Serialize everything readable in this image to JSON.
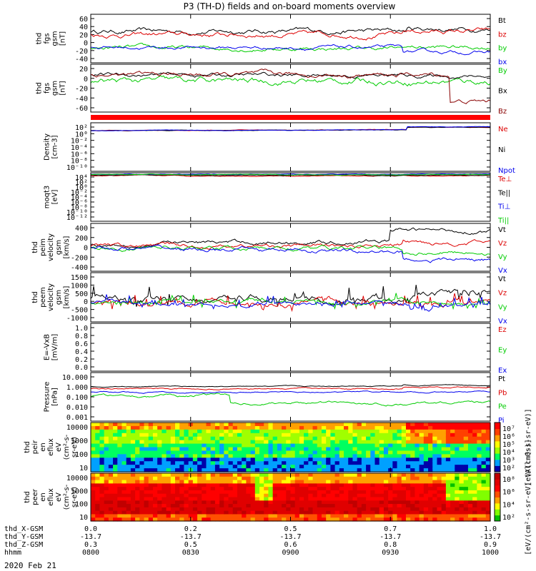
{
  "chart_data": {
    "type": "line",
    "title": "P3 (TH-D) fields and on-board moments overview",
    "date": "2020 Feb 21",
    "x_axis": {
      "time_labels": [
        "0800",
        "0830",
        "0900",
        "0930",
        "1000"
      ],
      "rows": [
        {
          "name": "thd_X-GSM",
          "values": [
            "0.0",
            "0.2",
            "0.5",
            "0.7",
            "1.0"
          ]
        },
        {
          "name": "thd_Y-GSM",
          "values": [
            "-13.7",
            "-13.7",
            "-13.7",
            "-13.7",
            "-13.7"
          ]
        },
        {
          "name": "thd_Z-GSM",
          "values": [
            "0.3",
            "0.5",
            "0.6",
            "0.8",
            "0.9"
          ]
        },
        {
          "name": "hhmm",
          "values": [
            "0800",
            "0830",
            "0900",
            "0930",
            "1000"
          ]
        }
      ]
    },
    "panels": [
      {
        "id": "fgs",
        "ylabel": [
          "thd",
          "fgs",
          "gsm",
          "[nT]"
        ],
        "ylim": [
          -40,
          60
        ],
        "scale": "linear",
        "ticks": [
          "60",
          "40",
          "20",
          "0",
          "-20",
          "-40"
        ],
        "series": [
          {
            "name": "Bt",
            "color": "#000000",
            "level": 25,
            "amp": 7,
            "end": 28,
            "jump": {
              "at": 0.79,
              "to": 30
            }
          },
          {
            "name": "bz",
            "color": "#dd0000",
            "level": 18,
            "amp": 7,
            "end": 20,
            "jump": {
              "at": 0.78,
              "to": 25
            }
          },
          {
            "name": "by",
            "color": "#00cc00",
            "level": -10,
            "amp": 6,
            "end": -12,
            "jump": {
              "at": 0.78,
              "to": -8
            }
          },
          {
            "name": "bx",
            "color": "#0000ee",
            "level": -8,
            "amp": 5,
            "end": -12,
            "jump": {
              "at": 0.78,
              "to": -18
            }
          }
        ]
      },
      {
        "id": "fgs2",
        "ylabel": [
          "thd",
          "fgs",
          "gsm",
          "[nT]"
        ],
        "ylim": [
          -70,
          20
        ],
        "scale": "linear",
        "ticks": [
          "20",
          "0",
          "-20",
          "-40",
          "-60"
        ],
        "series": [
          {
            "name": "By",
            "color": "#00cc00",
            "level": -12,
            "amp": 8,
            "end": -10,
            "jump": {
              "at": 0.8,
              "to": -12
            }
          },
          {
            "name": "Bx",
            "color": "#000000",
            "level": 0,
            "amp": 5,
            "end": -5,
            "jump": {
              "at": 0.8,
              "to": -2
            }
          },
          {
            "name": "Bz",
            "color": "#880000",
            "level": 0,
            "amp": 6,
            "end": 0,
            "jump": {
              "at": 0.9,
              "to": -50
            }
          }
        ]
      },
      {
        "id": "density",
        "ylabel": [
          "Density",
          "[cm-3]"
        ],
        "ylim": [
          -10,
          2
        ],
        "scale": "log",
        "ticks": [
          "10²",
          "10⁰",
          "10⁻²",
          "10⁻⁴",
          "10⁻⁶",
          "10⁻⁸",
          "10⁻¹⁰"
        ],
        "series": [
          {
            "name": "Ne",
            "color": "#dd0000",
            "level": 0.1,
            "amp": 0.1,
            "end": 0.8,
            "jump": {
              "at": 0.79,
              "to": 0.9
            }
          },
          {
            "name": "Ni",
            "color": "#000000",
            "level": 0.05,
            "amp": 0.1,
            "end": 0.8,
            "jump": {
              "at": 0.79,
              "to": 0.9
            }
          },
          {
            "name": "Npot",
            "color": "#0000ee",
            "level": 0.05,
            "amp": 0.1,
            "end": 0.9,
            "jump": {
              "at": 0.79,
              "to": 1.0
            }
          }
        ]
      },
      {
        "id": "temp",
        "ylabel": [
          "moqt3",
          "[eV]"
        ],
        "ylim": [
          -12,
          4
        ],
        "scale": "log",
        "ticks": [
          "10⁴",
          "10²",
          "10⁰",
          "10⁻²",
          "10⁻⁴",
          "10⁻⁶",
          "10⁻⁸",
          "10⁻¹⁰",
          "10⁻¹²"
        ],
        "series": [
          {
            "name": "Te⊥",
            "color": "#dd0000",
            "level": 3.0,
            "amp": 0.2,
            "end": 2.8,
            "jump": {
              "at": 0.8,
              "to": 2.9
            }
          },
          {
            "name": "Te||",
            "color": "#000000",
            "level": 3.2,
            "amp": 0.15,
            "end": 3.0,
            "jump": {
              "at": 0.8,
              "to": 3.1
            }
          },
          {
            "name": "Ti⊥",
            "color": "#0000ee",
            "level": 3.5,
            "amp": 0.15,
            "end": 3.3,
            "jump": {
              "at": 0.8,
              "to": 3.5
            }
          },
          {
            "name": "Ti||",
            "color": "#00cc00",
            "level": 3.4,
            "amp": 0.15,
            "end": 3.2,
            "jump": {
              "at": 0.8,
              "to": 3.4
            }
          }
        ]
      },
      {
        "id": "peim",
        "ylabel": [
          "thd",
          "peim",
          "velocity",
          "gsm",
          "[km/s]"
        ],
        "ylim": [
          -400,
          400
        ],
        "scale": "linear",
        "ticks": [
          "400",
          "200",
          "0",
          "-200",
          "-400"
        ],
        "series": [
          {
            "name": "Vt",
            "color": "#000000",
            "level": 50,
            "amp": 50,
            "end": 300,
            "jump": {
              "at": 0.75,
              "to": 280
            }
          },
          {
            "name": "Vz",
            "color": "#dd0000",
            "level": 20,
            "amp": 50,
            "end": 50,
            "jump": {
              "at": 0.78,
              "to": 80
            }
          },
          {
            "name": "Vy",
            "color": "#00cc00",
            "level": 0,
            "amp": 50,
            "end": -100,
            "jump": {
              "at": 0.78,
              "to": -80
            }
          },
          {
            "name": "Vx",
            "color": "#0000ee",
            "level": -20,
            "amp": 50,
            "end": -250,
            "jump": {
              "at": 0.78,
              "to": -200
            }
          }
        ]
      },
      {
        "id": "peem",
        "ylabel": [
          "thd",
          "peem",
          "velocity",
          "gsm",
          "[km/s]"
        ],
        "ylim": [
          -1000,
          1500
        ],
        "scale": "linear",
        "ticks": [
          "1500",
          "1000",
          "500",
          "0",
          "-500",
          "-1000"
        ],
        "series": [
          {
            "name": "Vt",
            "color": "#000000",
            "level": 150,
            "amp": 250,
            "end": 400,
            "jump": {
              "at": 0.8,
              "to": 400
            }
          },
          {
            "name": "Vz",
            "color": "#dd0000",
            "level": 0,
            "amp": 200,
            "end": 0,
            "jump": {
              "at": 0.8,
              "to": 0
            }
          },
          {
            "name": "Vy",
            "color": "#00cc00",
            "level": 0,
            "amp": 150,
            "end": -50,
            "jump": {
              "at": 0.8,
              "to": -50
            }
          },
          {
            "name": "Vx",
            "color": "#0000ee",
            "level": 0,
            "amp": 150,
            "end": -300,
            "jump": {
              "at": 0.8,
              "to": -250
            }
          }
        ]
      },
      {
        "id": "efield",
        "ylabel": [
          "E=-VxB",
          "[mV/m]"
        ],
        "ylim": [
          0,
          1
        ],
        "scale": "linear",
        "ticks": [
          "1.0",
          "0.8",
          "0.6",
          "0.4",
          "0.2",
          "0.0"
        ],
        "series": [
          {
            "name": "Ez",
            "color": "#dd0000",
            "empty": true
          },
          {
            "name": "Ey",
            "color": "#00cc00",
            "empty": true
          },
          {
            "name": "Ex",
            "color": "#0000ee",
            "empty": true
          }
        ]
      },
      {
        "id": "pressure",
        "ylabel": [
          "Pressure",
          "[nPa]"
        ],
        "ylim": [
          -3,
          1
        ],
        "scale": "log",
        "ticks": [
          "10.000",
          "1.000",
          "0.100",
          "0.010",
          "0.001"
        ],
        "series": [
          {
            "name": "Pt",
            "color": "#000000",
            "level": -0.15,
            "amp": 0.05,
            "end": -0.05,
            "jump": {
              "at": 0.78,
              "to": -0.05
            }
          },
          {
            "name": "Pb",
            "color": "#dd0000",
            "level": -0.35,
            "amp": 0.08,
            "end": -0.3,
            "jump": {
              "at": 0.78,
              "to": -0.2
            }
          },
          {
            "name": "Pe",
            "color": "#00cc00",
            "level": -0.9,
            "amp": 0.15,
            "end": -0.8,
            "jump": {
              "at": 0.35,
              "to": -1.5
            }
          },
          {
            "name": "Pi",
            "color": "#0000ee",
            "level": -0.6,
            "amp": 0.08,
            "end": -0.55,
            "jump": {
              "at": 0.78,
              "to": -0.6
            }
          }
        ]
      },
      {
        "id": "peir",
        "ylabel": [
          "thd",
          "peir",
          "en",
          "eflux",
          "eV",
          "(cm²-s-",
          "sr-eV)"
        ],
        "type": "heatmap",
        "ticks": [
          "10000",
          "1000",
          "100",
          "10"
        ],
        "colorbar": {
          "ticks": [
            "10⁷",
            "10⁶",
            "10⁵",
            "10⁴",
            "10³",
            "10²"
          ],
          "label": "[eV/(cm²-s-sr-eV)]"
        }
      },
      {
        "id": "peer",
        "ylabel": [
          "thd",
          "peer",
          "en",
          "eflux",
          "eV",
          "(cm²-s-",
          "sr-eV)"
        ],
        "type": "heatmap",
        "ticks": [
          "10000",
          "1000",
          "100",
          "10"
        ],
        "colorbar": {
          "ticks": [
            "10⁸",
            "10⁶",
            "10⁴",
            "10²"
          ],
          "label": "[eV/(cm²-s-sr-eV) (All Qs)]"
        }
      }
    ]
  }
}
